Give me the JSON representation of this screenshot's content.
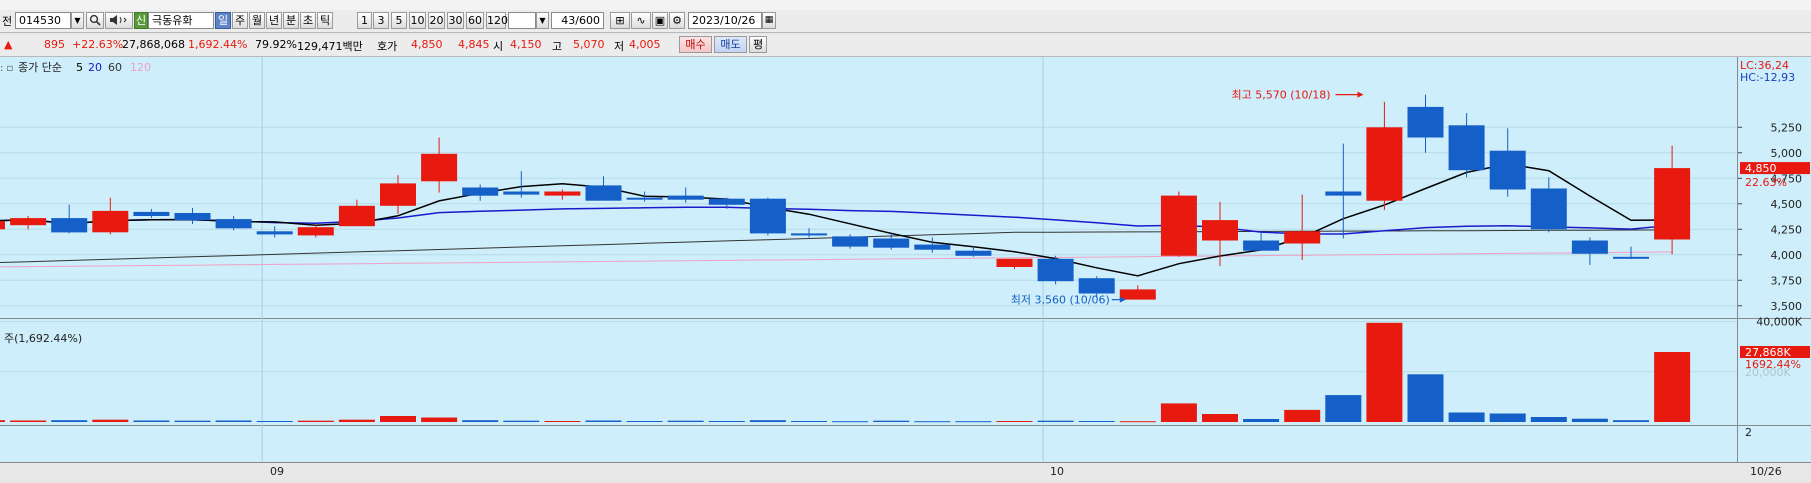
{
  "toolbar": {
    "left_label": "전",
    "code": "014530",
    "stock_name": "극동유화",
    "credit_badge": "신",
    "periods": [
      "일",
      "주",
      "월",
      "년",
      "분",
      "초",
      "틱"
    ],
    "selected_period": "일",
    "intervals": [
      "1",
      "3",
      "5",
      "10",
      "20",
      "30",
      "60",
      "120"
    ],
    "count": "43/600",
    "date": "2023/10/26"
  },
  "quote": {
    "arrow": "▲",
    "change": "895",
    "change_pct": "+22.63%",
    "volume": "27,868,068",
    "volume_pct": "1,692.44%",
    "turnover_pct": "79.92%",
    "amount": "129,471백만",
    "hoga_label": "호가",
    "ask": "4,850",
    "bid": "4,845",
    "open_label": "시",
    "open": "4,150",
    "high_label": "고",
    "high": "5,070",
    "low_label": "저",
    "low": "4,005",
    "buy_button": "매수",
    "sell_button": "매도",
    "eval_button": "평"
  },
  "legend": {
    "prefix": "종가 단순",
    "ma": [
      "5",
      "20",
      "60",
      "120"
    ],
    "ma_colors": [
      "#000000",
      "#1a1acc",
      "#333333",
      "#f0a0c8"
    ]
  },
  "price_corner": {
    "lc": "LC:36,24",
    "hc": "HC:-12,93"
  },
  "volume_label": "주(1,692.44%)",
  "colors": {
    "up": "#e8190f",
    "down": "#1560c8",
    "background": "#cdeefa"
  },
  "chart_data": {
    "type": "candlestick",
    "price_axis": {
      "ticks": [
        "5,250",
        "5,000",
        "4,750",
        "4,500",
        "4,250",
        "4,000",
        "3,750",
        "3,500"
      ],
      "range": [
        3380,
        5900
      ],
      "current_price": "4,850",
      "current_change": "22.63%"
    },
    "volume_axis": {
      "ticks": [
        "40,000K"
      ],
      "range": [
        0,
        41000
      ],
      "current_volume": "27,868K",
      "current_pct": "1692.44%",
      "faded_tick": "20,000K"
    },
    "indicator_axis": {
      "ticks": [
        "2"
      ]
    },
    "x_axis": {
      "labels": [
        "09",
        "10",
        "10/26"
      ]
    },
    "annotations": {
      "high": "최고 5,570 (10/18)",
      "low": "최저 3,560 (10/06)"
    },
    "candles": [
      {
        "o": 4250,
        "h": 4330,
        "l": 4180,
        "c": 4330,
        "v": 700
      },
      {
        "o": 4290,
        "h": 4380,
        "l": 4250,
        "c": 4360,
        "v": 600
      },
      {
        "o": 4360,
        "h": 4490,
        "l": 4210,
        "c": 4220,
        "v": 700
      },
      {
        "o": 4220,
        "h": 4560,
        "l": 4200,
        "c": 4430,
        "v": 900
      },
      {
        "o": 4420,
        "h": 4450,
        "l": 4360,
        "c": 4380,
        "v": 600
      },
      {
        "o": 4410,
        "h": 4460,
        "l": 4300,
        "c": 4340,
        "v": 500
      },
      {
        "o": 4350,
        "h": 4380,
        "l": 4240,
        "c": 4260,
        "v": 600
      },
      {
        "o": 4230,
        "h": 4280,
        "l": 4170,
        "c": 4200,
        "v": 400
      },
      {
        "o": 4190,
        "h": 4300,
        "l": 4170,
        "c": 4270,
        "v": 500
      },
      {
        "o": 4280,
        "h": 4540,
        "l": 4280,
        "c": 4480,
        "v": 900
      },
      {
        "o": 4480,
        "h": 4780,
        "l": 4400,
        "c": 4700,
        "v": 2400
      },
      {
        "o": 4720,
        "h": 5150,
        "l": 4610,
        "c": 4990,
        "v": 1800
      },
      {
        "o": 4660,
        "h": 4690,
        "l": 4530,
        "c": 4580,
        "v": 700
      },
      {
        "o": 4620,
        "h": 4820,
        "l": 4560,
        "c": 4590,
        "v": 500
      },
      {
        "o": 4580,
        "h": 4640,
        "l": 4540,
        "c": 4620,
        "v": 400
      },
      {
        "o": 4680,
        "h": 4770,
        "l": 4550,
        "c": 4530,
        "v": 600
      },
      {
        "o": 4560,
        "h": 4620,
        "l": 4520,
        "c": 4550,
        "v": 400
      },
      {
        "o": 4580,
        "h": 4660,
        "l": 4510,
        "c": 4540,
        "v": 500
      },
      {
        "o": 4550,
        "h": 4560,
        "l": 4450,
        "c": 4490,
        "v": 400
      },
      {
        "o": 4550,
        "h": 4560,
        "l": 4190,
        "c": 4210,
        "v": 700
      },
      {
        "o": 4210,
        "h": 4260,
        "l": 4170,
        "c": 4200,
        "v": 400
      },
      {
        "o": 4180,
        "h": 4200,
        "l": 4060,
        "c": 4080,
        "v": 300
      },
      {
        "o": 4160,
        "h": 4210,
        "l": 4050,
        "c": 4070,
        "v": 500
      },
      {
        "o": 4100,
        "h": 4170,
        "l": 4020,
        "c": 4050,
        "v": 300
      },
      {
        "o": 4040,
        "h": 4080,
        "l": 3980,
        "c": 3990,
        "v": 300
      },
      {
        "o": 3880,
        "h": 3960,
        "l": 3860,
        "c": 3960,
        "v": 400
      },
      {
        "o": 3960,
        "h": 3990,
        "l": 3710,
        "c": 3740,
        "v": 500
      },
      {
        "o": 3770,
        "h": 3790,
        "l": 3580,
        "c": 3620,
        "v": 400
      },
      {
        "o": 3560,
        "h": 3700,
        "l": 3560,
        "c": 3660,
        "v": 300
      },
      {
        "o": 3990,
        "h": 4620,
        "l": 3980,
        "c": 4580,
        "v": 7400
      },
      {
        "o": 4140,
        "h": 4520,
        "l": 3890,
        "c": 4340,
        "v": 3200
      },
      {
        "o": 4140,
        "h": 4220,
        "l": 4060,
        "c": 4040,
        "v": 1200
      },
      {
        "o": 4110,
        "h": 4590,
        "l": 3950,
        "c": 4230,
        "v": 4800
      },
      {
        "o": 4620,
        "h": 5090,
        "l": 4160,
        "c": 4580,
        "v": 10700
      },
      {
        "o": 4530,
        "h": 5500,
        "l": 4440,
        "c": 5250,
        "v": 39500
      },
      {
        "o": 5450,
        "h": 5570,
        "l": 5000,
        "c": 5150,
        "v": 19000
      },
      {
        "o": 5270,
        "h": 5390,
        "l": 4760,
        "c": 4830,
        "v": 3800
      },
      {
        "o": 5020,
        "h": 5240,
        "l": 4570,
        "c": 4640,
        "v": 3400
      },
      {
        "o": 4650,
        "h": 4760,
        "l": 4220,
        "c": 4250,
        "v": 2000
      },
      {
        "o": 4140,
        "h": 4170,
        "l": 3900,
        "c": 4010,
        "v": 1300
      },
      {
        "o": 3980,
        "h": 4080,
        "l": 3960,
        "c": 3960,
        "v": 700
      },
      {
        "o": 4150,
        "h": 5070,
        "l": 4005,
        "c": 4850,
        "v": 27868
      }
    ]
  }
}
